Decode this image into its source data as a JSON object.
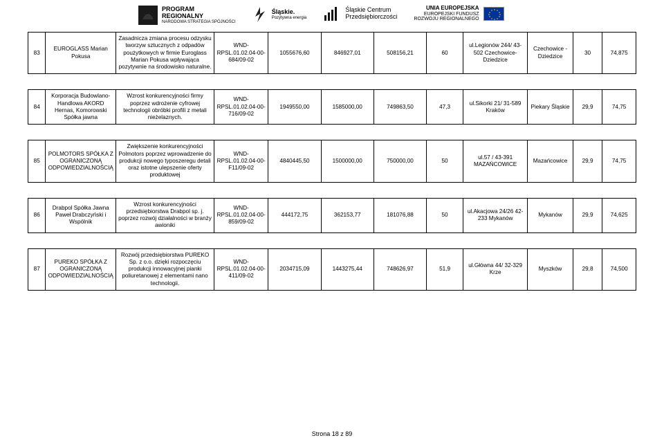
{
  "header": {
    "logos": [
      {
        "title": "PROGRAM",
        "title2": "REGIONALNY",
        "sub": "NARODOWA STRATEGIA SPÓJNOŚCI"
      },
      {
        "title": "Śląskie.",
        "sub": "Pozytywna energia"
      },
      {
        "title": "Śląskie Centrum",
        "sub": "Przedsiębiorczości"
      },
      {
        "title": "UNIA EUROPEJSKA",
        "sub1": "EUROPEJSKI FUNDUSZ",
        "sub2": "ROZWOJU REGIONALNEGO"
      }
    ]
  },
  "columns": {
    "widths": [
      24,
      96,
      134,
      74,
      72,
      72,
      72,
      50,
      88,
      62,
      40,
      46
    ]
  },
  "rows": [
    {
      "n": "83",
      "company": "EUROGLASS Marian Pokusa",
      "desc": "Zasadnicza zmiana procesu odzysku tworzyw sztucznych z odpadów poużytkowych w firmie Euroglass Marian Pokusa wpływająca pozytywnie na środowisko naturalne.",
      "code": "WND-RPSL.01.02.04-00-684/09-02",
      "v1": "1055676,60",
      "v2": "846927,01",
      "v3": "508156,21",
      "v4": "60",
      "addr": "ul.Legionów 244/ 43-502 Czechowice-Dziedzice",
      "city": "Czechowice -Dziedzice",
      "s1": "30",
      "s2": "74,875"
    },
    {
      "n": "84",
      "company": "Korporacja Budowlano-Handlowa AKORD Hernas, Komorowski Spółka jawna",
      "desc": "Wzrost konkurencyjności firmy poprzez wdrożenie cyfrowej technologii obróbki profili z metali nieżelaznych.",
      "code": "WND-RPSL.01.02.04-00-716/09-02",
      "v1": "1949550,00",
      "v2": "1585000,00",
      "v3": "749863,50",
      "v4": "47,3",
      "addr": "ul.Sikorki 21/ 31-589 Kraków",
      "city": "Piekary Śląskie",
      "s1": "29,9",
      "s2": "74,75"
    },
    {
      "n": "85",
      "company": "POLMOTORS SPÓŁKA Z OGRANICZONĄ ODPOWIEDZIALNOŚCIĄ",
      "desc": "Zwiększenie konkurencyjności Polmotors poprzez wprowadzenie do produkcji nowego typoszeregu detali oraz istotne ulepszenie oferty produktowej",
      "code": "WND-RPSL.01.02.04-00-F11/09-02",
      "v1": "4840445,50",
      "v2": "1500000,00",
      "v3": "750000,00",
      "v4": "50",
      "addr": "ul.57 / 43-391 MAZAŃCOWICE",
      "city": "Mazańcowice",
      "s1": "29,9",
      "s2": "74,75"
    },
    {
      "n": "86",
      "company": "Drabpol Spółka Jawna Paweł Drabczyński i Wspólnik",
      "desc": "Wzrost konkurencyjności przedsiębiorstwa Drabpol sp. j. poprzez rozwój działalności w branży awioniki",
      "code": "WND-RPSL.01.02.04-00-859/09-02",
      "v1": "444172,75",
      "v2": "362153,77",
      "v3": "181076,88",
      "v4": "50",
      "addr": "ul.Akacjowa 24/26 42-233 Mykanów",
      "city": "Mykanów",
      "s1": "29,9",
      "s2": "74,625"
    },
    {
      "n": "87",
      "company": "PUREKO SPÓŁKA Z OGRANICZONĄ ODPOWIEDZIALNOŚCIĄ",
      "desc": "Rozwój przedsiębiorstwa PUREKO Sp. z o.o. dzięki rozpoczęciu produkcji innowacyjnej pianki poliuretanowej z elementami nano technologii.",
      "code": "WND-RPSL.01.02.04-00-411/09-02",
      "v1": "2034715,09",
      "v2": "1443275,44",
      "v3": "748626,97",
      "v4": "51,9",
      "addr": "ul.Główna 44/ 32-329 Krze",
      "city": "Myszków",
      "s1": "29,8",
      "s2": "74,500"
    }
  ],
  "footer": "Strona 18 z 89"
}
